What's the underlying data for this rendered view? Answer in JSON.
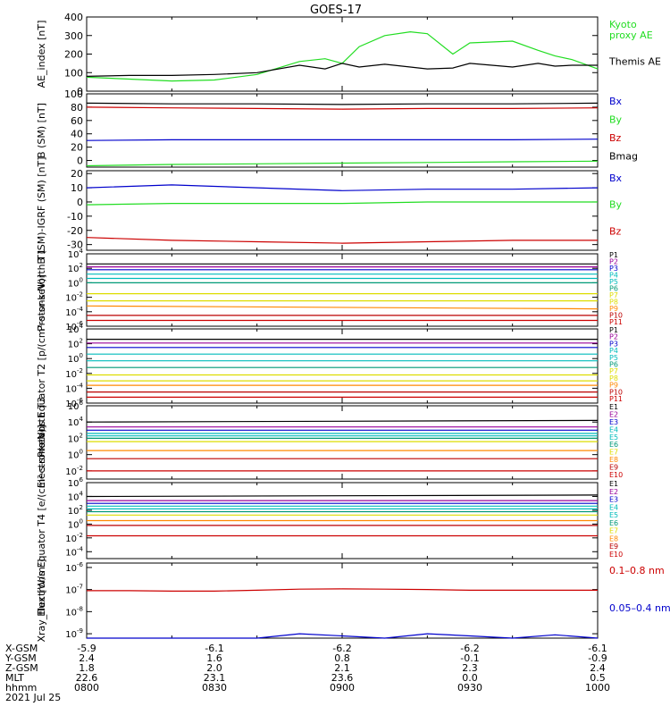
{
  "title": "GOES-17",
  "colors": {
    "axis": "#000000",
    "black": "#000000",
    "green": "#22dd22",
    "red": "#cc0000",
    "blue": "#0000cc",
    "dark_red": "#bb0000",
    "orange": "#ff8800",
    "yellow": "#dddd00",
    "cyan": "#00bbbb",
    "teal": "#009977",
    "purple": "#990099",
    "navy": "#000088"
  },
  "chart_data": [
    {
      "id": "ae",
      "type": "line",
      "ylabel": "AE_index [nT]",
      "ylim": [
        0,
        400
      ],
      "yticks": [
        {
          "v": 0,
          "l": "0"
        },
        {
          "v": 100,
          "l": "100"
        },
        {
          "v": 200,
          "l": "200"
        },
        {
          "v": 300,
          "l": "300"
        },
        {
          "v": 400,
          "l": "400"
        }
      ],
      "x": [
        0,
        5,
        10,
        15,
        20,
        25,
        28,
        30,
        32,
        35,
        38,
        40,
        43,
        45,
        50,
        53,
        55,
        57,
        60
      ],
      "series": [
        {
          "name": "Kyoto proxy AE",
          "legend": "Kyoto\nproxy AE",
          "color": "green",
          "values": [
            75,
            65,
            55,
            60,
            90,
            160,
            175,
            150,
            240,
            300,
            320,
            310,
            200,
            260,
            270,
            220,
            190,
            170,
            120
          ]
        },
        {
          "name": "Themis AE",
          "legend": "Themis AE",
          "color": "black",
          "values": [
            80,
            85,
            85,
            90,
            100,
            140,
            120,
            150,
            130,
            145,
            130,
            120,
            125,
            150,
            130,
            150,
            135,
            140,
            140
          ]
        }
      ]
    },
    {
      "id": "bsm",
      "type": "line",
      "ylabel": "B (SM) [nT]",
      "ylim": [
        -10,
        100
      ],
      "yticks": [
        {
          "v": 0,
          "l": "0"
        },
        {
          "v": 20,
          "l": "20"
        },
        {
          "v": 40,
          "l": "40"
        },
        {
          "v": 60,
          "l": "60"
        },
        {
          "v": 80,
          "l": "80"
        },
        {
          "v": 100,
          "l": "100"
        }
      ],
      "x": [
        0,
        10,
        20,
        30,
        40,
        50,
        60
      ],
      "series": [
        {
          "name": "Bx",
          "legend": "Bx",
          "color": "blue",
          "values": [
            30,
            31,
            31,
            31,
            31,
            31,
            32
          ]
        },
        {
          "name": "By",
          "legend": "By",
          "color": "green",
          "values": [
            -8,
            -6,
            -5,
            -4,
            -3,
            -2,
            -1
          ]
        },
        {
          "name": "Bz",
          "legend": "Bz",
          "color": "red",
          "values": [
            80,
            79,
            78,
            77,
            78,
            78,
            79
          ]
        },
        {
          "name": "Bmag",
          "legend": "Bmag",
          "color": "black",
          "values": [
            86,
            85,
            85,
            84,
            85,
            85,
            86
          ]
        }
      ]
    },
    {
      "id": "bsm_igrf",
      "type": "line",
      "ylabel": "B (SM)-IGRF (SM) [nT]",
      "ylim": [
        -34,
        22
      ],
      "yticks": [
        {
          "v": -30,
          "l": "-30"
        },
        {
          "v": -20,
          "l": "-20"
        },
        {
          "v": -10,
          "l": "-10"
        },
        {
          "v": 0,
          "l": "0"
        },
        {
          "v": 10,
          "l": "10"
        },
        {
          "v": 20,
          "l": "20"
        }
      ],
      "x": [
        0,
        10,
        20,
        30,
        40,
        50,
        60
      ],
      "series": [
        {
          "name": "Bx",
          "legend": "Bx",
          "color": "blue",
          "values": [
            10,
            12,
            10,
            8,
            9,
            9,
            10
          ]
        },
        {
          "name": "By",
          "legend": "By",
          "color": "green",
          "values": [
            -2,
            -1,
            -1,
            -1,
            0,
            0,
            0
          ]
        },
        {
          "name": "Bz",
          "legend": "Bz",
          "color": "red",
          "values": [
            -25,
            -27,
            -28,
            -29,
            -28,
            -27,
            -27
          ]
        }
      ]
    },
    {
      "id": "protons_t1",
      "type": "line",
      "log": true,
      "ylabel": "Protons North T1",
      "ylim": [
        -6,
        4
      ],
      "yticks": [
        {
          "v": -6,
          "b": "10",
          "e": "-6"
        },
        {
          "v": -4,
          "b": "10",
          "e": "-4"
        },
        {
          "v": -2,
          "b": "10",
          "e": "-2"
        },
        {
          "v": 0,
          "b": "10",
          "e": "0"
        },
        {
          "v": 2,
          "b": "10",
          "e": "2"
        },
        {
          "v": 4,
          "b": "10",
          "e": "4"
        }
      ],
      "x": [
        0,
        60
      ],
      "series": [
        {
          "name": "P1",
          "legend": "P1",
          "color": "black",
          "values": [
            2.6,
            2.6
          ]
        },
        {
          "name": "P2",
          "legend": "P2",
          "color": "purple",
          "values": [
            2.2,
            2.2
          ]
        },
        {
          "name": "P3",
          "legend": "P3",
          "color": "blue",
          "values": [
            1.8,
            1.8
          ]
        },
        {
          "name": "P4",
          "legend": "P4",
          "color": "cyan",
          "values": [
            1.2,
            1.2
          ]
        },
        {
          "name": "P5",
          "legend": "P5",
          "color": "cyan",
          "values": [
            0.6,
            0.6
          ]
        },
        {
          "name": "P6",
          "legend": "P6",
          "color": "teal",
          "values": [
            0.0,
            0.0
          ]
        },
        {
          "name": "P7",
          "legend": "P7",
          "color": "yellow",
          "values": [
            -1.5,
            -1.5
          ]
        },
        {
          "name": "P8",
          "legend": "P8",
          "color": "yellow",
          "values": [
            -2.5,
            -2.5
          ]
        },
        {
          "name": "P9",
          "legend": "P9",
          "color": "orange",
          "values": [
            -3.2,
            -3.6
          ]
        },
        {
          "name": "P10",
          "legend": "P10",
          "color": "dark_red",
          "values": [
            -4.5,
            -4.5
          ]
        },
        {
          "name": "P11",
          "legend": "P11",
          "color": "red",
          "values": [
            -5.2,
            -5.2
          ]
        }
      ]
    },
    {
      "id": "protons_t2",
      "type": "line",
      "log": true,
      "ylabel": "Protons Equator T2 [p/(cm²-s-sr-keV)]",
      "ylim": [
        -6,
        4
      ],
      "yticks": [
        {
          "v": -6,
          "b": "10",
          "e": "-6"
        },
        {
          "v": -4,
          "b": "10",
          "e": "-4"
        },
        {
          "v": -2,
          "b": "10",
          "e": "-2"
        },
        {
          "v": 0,
          "b": "10",
          "e": "0"
        },
        {
          "v": 2,
          "b": "10",
          "e": "2"
        },
        {
          "v": 4,
          "b": "10",
          "e": "4"
        }
      ],
      "x": [
        0,
        60
      ],
      "series": [
        {
          "name": "P1",
          "legend": "P1",
          "color": "black",
          "values": [
            2.6,
            2.6
          ]
        },
        {
          "name": "P2",
          "legend": "P2",
          "color": "purple",
          "values": [
            2.1,
            2.1
          ]
        },
        {
          "name": "P3",
          "legend": "P3",
          "color": "blue",
          "values": [
            1.5,
            1.5
          ]
        },
        {
          "name": "P4",
          "legend": "P4",
          "color": "cyan",
          "values": [
            0.6,
            0.6
          ]
        },
        {
          "name": "P5",
          "legend": "P5",
          "color": "cyan",
          "values": [
            -0.3,
            -0.3
          ]
        },
        {
          "name": "P6",
          "legend": "P6",
          "color": "teal",
          "values": [
            -1.2,
            -1.2
          ]
        },
        {
          "name": "P7",
          "legend": "P7",
          "color": "yellow",
          "values": [
            -2.2,
            -2.2
          ]
        },
        {
          "name": "P8",
          "legend": "P8",
          "color": "yellow",
          "values": [
            -3.0,
            -3.0
          ]
        },
        {
          "name": "P9",
          "legend": "P9",
          "color": "orange",
          "values": [
            -3.6,
            -3.6
          ]
        },
        {
          "name": "P10",
          "legend": "P10",
          "color": "dark_red",
          "values": [
            -4.5,
            -4.5
          ]
        },
        {
          "name": "P11",
          "legend": "P11",
          "color": "red",
          "values": [
            -5.2,
            -5.2
          ]
        }
      ]
    },
    {
      "id": "electrons_t3",
      "type": "line",
      "log": true,
      "ylabel": "Electrons North T3",
      "ylim": [
        -3,
        6
      ],
      "yticks": [
        {
          "v": -2,
          "b": "10",
          "e": "-2"
        },
        {
          "v": 0,
          "b": "10",
          "e": "0"
        },
        {
          "v": 2,
          "b": "10",
          "e": "2"
        },
        {
          "v": 4,
          "b": "10",
          "e": "4"
        },
        {
          "v": 6,
          "b": "10",
          "e": "6"
        }
      ],
      "x": [
        0,
        60
      ],
      "series": [
        {
          "name": "E1",
          "legend": "E1",
          "color": "black",
          "values": [
            4.0,
            4.2
          ]
        },
        {
          "name": "E2",
          "legend": "E2",
          "color": "purple",
          "values": [
            3.4,
            3.4
          ]
        },
        {
          "name": "E3",
          "legend": "E3",
          "color": "blue",
          "values": [
            3.0,
            3.0
          ]
        },
        {
          "name": "E4",
          "legend": "E4",
          "color": "cyan",
          "values": [
            2.6,
            2.6
          ]
        },
        {
          "name": "E5",
          "legend": "E5",
          "color": "cyan",
          "values": [
            2.3,
            2.3
          ]
        },
        {
          "name": "E6",
          "legend": "E6",
          "color": "teal",
          "values": [
            2.0,
            2.0
          ]
        },
        {
          "name": "E7",
          "legend": "E7",
          "color": "yellow",
          "values": [
            1.6,
            1.6
          ]
        },
        {
          "name": "E8",
          "legend": "E8",
          "color": "orange",
          "values": [
            0.5,
            0.5
          ]
        },
        {
          "name": "E9",
          "legend": "E9",
          "color": "dark_red",
          "values": [
            -0.5,
            -0.5
          ]
        },
        {
          "name": "E10",
          "legend": "E10",
          "color": "red",
          "values": [
            -2.0,
            -2.0
          ]
        }
      ]
    },
    {
      "id": "electrons_t4",
      "type": "line",
      "log": true,
      "ylabel": "Electrons Equator T4 [e/(cm²-s-sr-keV)]",
      "ylim": [
        -5,
        6
      ],
      "yticks": [
        {
          "v": -4,
          "b": "10",
          "e": "-4"
        },
        {
          "v": -2,
          "b": "10",
          "e": "-2"
        },
        {
          "v": 0,
          "b": "10",
          "e": "0"
        },
        {
          "v": 2,
          "b": "10",
          "e": "2"
        },
        {
          "v": 4,
          "b": "10",
          "e": "4"
        },
        {
          "v": 6,
          "b": "10",
          "e": "6"
        }
      ],
      "x": [
        0,
        60
      ],
      "series": [
        {
          "name": "E1",
          "legend": "E1",
          "color": "black",
          "values": [
            4.0,
            4.2
          ]
        },
        {
          "name": "E2",
          "legend": "E2",
          "color": "purple",
          "values": [
            3.4,
            3.4
          ]
        },
        {
          "name": "E3",
          "legend": "E3",
          "color": "blue",
          "values": [
            3.0,
            3.0
          ]
        },
        {
          "name": "E4",
          "legend": "E4",
          "color": "cyan",
          "values": [
            2.6,
            2.6
          ]
        },
        {
          "name": "E5",
          "legend": "E5",
          "color": "cyan",
          "values": [
            2.2,
            2.2
          ]
        },
        {
          "name": "E6",
          "legend": "E6",
          "color": "teal",
          "values": [
            1.8,
            1.8
          ]
        },
        {
          "name": "E7",
          "legend": "E7",
          "color": "yellow",
          "values": [
            1.3,
            1.3
          ]
        },
        {
          "name": "E8",
          "legend": "E8",
          "color": "orange",
          "values": [
            0.5,
            0.5
          ]
        },
        {
          "name": "E9",
          "legend": "E9",
          "color": "dark_red",
          "values": [
            -0.2,
            -0.2
          ]
        },
        {
          "name": "E10",
          "legend": "E10",
          "color": "red",
          "values": [
            -1.7,
            -1.7
          ]
        }
      ]
    },
    {
      "id": "xray",
      "type": "line",
      "log": true,
      "ylabel": "Xray_flux [W/m²]",
      "ylim": [
        -9.2,
        -5.8
      ],
      "yticks": [
        {
          "v": -9,
          "b": "10",
          "e": "-9"
        },
        {
          "v": -8,
          "b": "10",
          "e": "-8"
        },
        {
          "v": -7,
          "b": "10",
          "e": "-7"
        },
        {
          "v": -6,
          "b": "10",
          "e": "-6"
        }
      ],
      "x": [
        0,
        5,
        10,
        15,
        20,
        25,
        30,
        35,
        40,
        45,
        50,
        55,
        60
      ],
      "series": [
        {
          "name": "0.1-0.8 nm",
          "legend": "0.1–0.8 nm",
          "color": "red",
          "values": [
            -7.05,
            -7.05,
            -7.07,
            -7.07,
            -7.03,
            -6.98,
            -6.97,
            -6.98,
            -7.0,
            -7.03,
            -7.03,
            -7.03,
            -7.03
          ]
        },
        {
          "name": "0.05-0.4 nm",
          "legend": "0.05–0.4 nm",
          "color": "blue",
          "values": [
            -9.2,
            -9.2,
            -9.2,
            -9.2,
            -9.2,
            -9.0,
            -9.1,
            -9.2,
            -9.0,
            -9.1,
            -9.2,
            -9.05,
            -9.2
          ]
        }
      ]
    }
  ],
  "xaxis": {
    "rows": [
      {
        "label": "X-GSM",
        "values": [
          "-5.9",
          "-6.1",
          "-6.2",
          "-6.2",
          "-6.1"
        ]
      },
      {
        "label": "Y-GSM",
        "values": [
          "2.4",
          "1.6",
          "0.8",
          "-0.1",
          "-0.9"
        ]
      },
      {
        "label": "Z-GSM",
        "values": [
          "1.8",
          "2.0",
          "2.1",
          "2.3",
          "2.4"
        ]
      },
      {
        "label": "MLT",
        "values": [
          "22.6",
          "23.1",
          "23.6",
          "0.0",
          "0.5"
        ]
      },
      {
        "label": "hhmm",
        "values": [
          "0800",
          "0830",
          "0900",
          "0930",
          "1000"
        ]
      }
    ],
    "date": "2021 Jul 25"
  }
}
